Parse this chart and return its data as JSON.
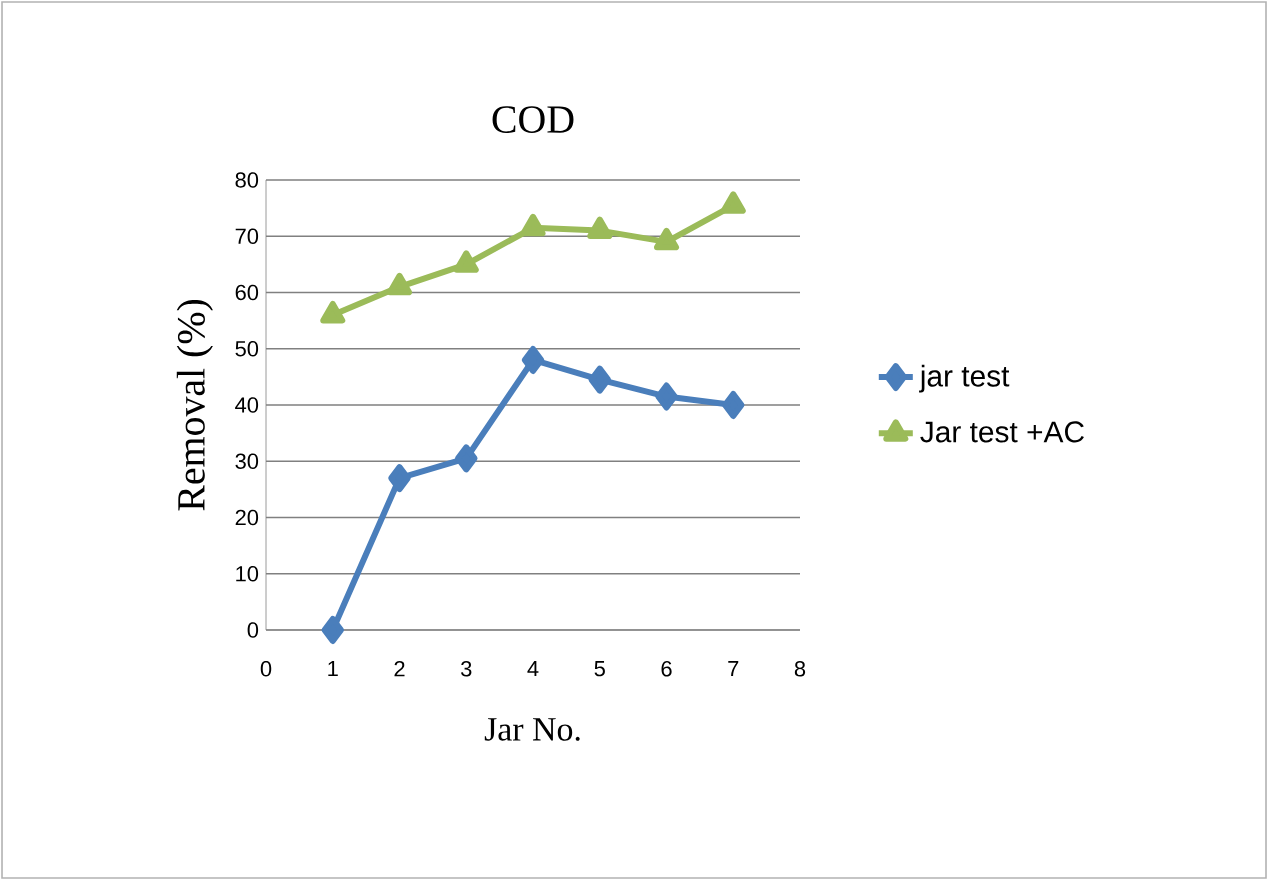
{
  "chart_data": {
    "type": "line",
    "title": "COD",
    "xlabel": "Jar No.",
    "ylabel": "Removal (%)",
    "x": [
      1,
      2,
      3,
      4,
      5,
      6,
      7
    ],
    "series": [
      {
        "name": "jar test",
        "color": "#4a7ebb",
        "marker": "diamond",
        "values": [
          0,
          27,
          30.5,
          48,
          44.5,
          41.5,
          40
        ]
      },
      {
        "name": "Jar test +AC",
        "color": "#9bbb59",
        "marker": "triangle",
        "values": [
          56,
          61,
          65,
          71.5,
          71,
          69,
          75.5
        ]
      }
    ],
    "xlim": [
      0,
      8
    ],
    "xticks": [
      0,
      1,
      2,
      3,
      4,
      5,
      6,
      7,
      8
    ],
    "ylim": [
      0,
      80
    ],
    "yticks": [
      0,
      10,
      20,
      30,
      40,
      50,
      60,
      70,
      80
    ],
    "grid": "y",
    "legend": "right",
    "line_style": "solid"
  }
}
